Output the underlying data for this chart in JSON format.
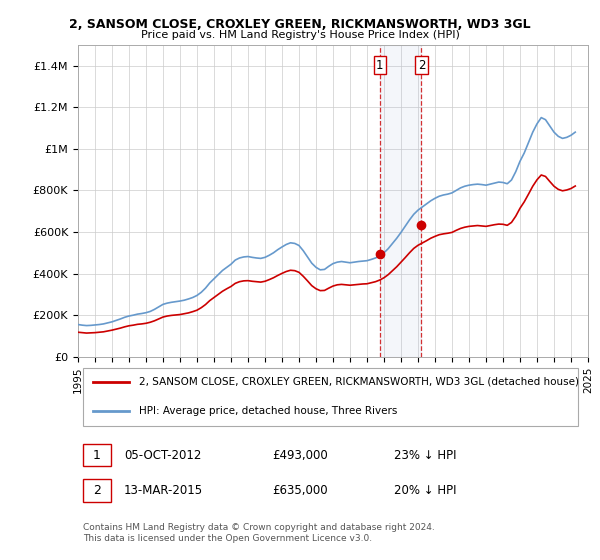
{
  "title": "2, SANSOM CLOSE, CROXLEY GREEN, RICKMANSWORTH, WD3 3GL",
  "subtitle": "Price paid vs. HM Land Registry's House Price Index (HPI)",
  "ylim": [
    0,
    1500000
  ],
  "yticks": [
    0,
    200000,
    400000,
    600000,
    800000,
    1000000,
    1200000,
    1400000
  ],
  "ytick_labels": [
    "£0",
    "£200K",
    "£400K",
    "£600K",
    "£800K",
    "£1M",
    "£1.2M",
    "£1.4M"
  ],
  "sale1_date": "05-OCT-2012",
  "sale1_price": 493000,
  "sale1_price_str": "£493,000",
  "sale1_pct": "23%",
  "sale1_year": 2012.75,
  "sale2_date": "13-MAR-2015",
  "sale2_price": 635000,
  "sale2_price_str": "£635,000",
  "sale2_pct": "20%",
  "sale2_year": 2015.2,
  "property_color": "#cc0000",
  "hpi_color": "#6699cc",
  "legend1_label": "2, SANSOM CLOSE, CROXLEY GREEN, RICKMANSWORTH, WD3 3GL (detached house)",
  "legend2_label": "HPI: Average price, detached house, Three Rivers",
  "copyright": "Contains HM Land Registry data © Crown copyright and database right 2024.\nThis data is licensed under the Open Government Licence v3.0.",
  "background_color": "#ffffff",
  "grid_color": "#cccccc",
  "hpi_data_x": [
    1995.0,
    1995.25,
    1995.5,
    1995.75,
    1996.0,
    1996.25,
    1996.5,
    1996.75,
    1997.0,
    1997.25,
    1997.5,
    1997.75,
    1998.0,
    1998.25,
    1998.5,
    1998.75,
    1999.0,
    1999.25,
    1999.5,
    1999.75,
    2000.0,
    2000.25,
    2000.5,
    2000.75,
    2001.0,
    2001.25,
    2001.5,
    2001.75,
    2002.0,
    2002.25,
    2002.5,
    2002.75,
    2003.0,
    2003.25,
    2003.5,
    2003.75,
    2004.0,
    2004.25,
    2004.5,
    2004.75,
    2005.0,
    2005.25,
    2005.5,
    2005.75,
    2006.0,
    2006.25,
    2006.5,
    2006.75,
    2007.0,
    2007.25,
    2007.5,
    2007.75,
    2008.0,
    2008.25,
    2008.5,
    2008.75,
    2009.0,
    2009.25,
    2009.5,
    2009.75,
    2010.0,
    2010.25,
    2010.5,
    2010.75,
    2011.0,
    2011.25,
    2011.5,
    2011.75,
    2012.0,
    2012.25,
    2012.5,
    2012.75,
    2013.0,
    2013.25,
    2013.5,
    2013.75,
    2014.0,
    2014.25,
    2014.5,
    2014.75,
    2015.0,
    2015.25,
    2015.5,
    2015.75,
    2016.0,
    2016.25,
    2016.5,
    2016.75,
    2017.0,
    2017.25,
    2017.5,
    2017.75,
    2018.0,
    2018.25,
    2018.5,
    2018.75,
    2019.0,
    2019.25,
    2019.5,
    2019.75,
    2020.0,
    2020.25,
    2020.5,
    2020.75,
    2021.0,
    2021.25,
    2021.5,
    2021.75,
    2022.0,
    2022.25,
    2022.5,
    2022.75,
    2023.0,
    2023.25,
    2023.5,
    2023.75,
    2024.0,
    2024.25
  ],
  "hpi_data_y": [
    155000,
    152000,
    150000,
    151000,
    153000,
    155000,
    158000,
    163000,
    168000,
    175000,
    182000,
    190000,
    196000,
    200000,
    205000,
    208000,
    212000,
    218000,
    228000,
    240000,
    252000,
    258000,
    262000,
    265000,
    268000,
    272000,
    278000,
    285000,
    295000,
    310000,
    330000,
    355000,
    375000,
    395000,
    415000,
    430000,
    445000,
    465000,
    475000,
    480000,
    482000,
    478000,
    475000,
    473000,
    478000,
    488000,
    500000,
    515000,
    528000,
    540000,
    548000,
    545000,
    535000,
    510000,
    480000,
    450000,
    430000,
    418000,
    420000,
    435000,
    448000,
    455000,
    458000,
    455000,
    452000,
    455000,
    458000,
    460000,
    462000,
    468000,
    475000,
    485000,
    500000,
    520000,
    545000,
    570000,
    598000,
    628000,
    658000,
    685000,
    705000,
    720000,
    735000,
    750000,
    762000,
    772000,
    778000,
    782000,
    788000,
    800000,
    812000,
    820000,
    825000,
    828000,
    830000,
    828000,
    825000,
    830000,
    835000,
    840000,
    838000,
    832000,
    850000,
    890000,
    940000,
    980000,
    1030000,
    1080000,
    1120000,
    1150000,
    1140000,
    1110000,
    1080000,
    1060000,
    1050000,
    1055000,
    1065000,
    1080000
  ],
  "prop_data_x": [
    1995.0,
    1995.25,
    1995.5,
    1995.75,
    1996.0,
    1996.25,
    1996.5,
    1996.75,
    1997.0,
    1997.25,
    1997.5,
    1997.75,
    1998.0,
    1998.25,
    1998.5,
    1998.75,
    1999.0,
    1999.25,
    1999.5,
    1999.75,
    2000.0,
    2000.25,
    2000.5,
    2000.75,
    2001.0,
    2001.25,
    2001.5,
    2001.75,
    2002.0,
    2002.25,
    2002.5,
    2002.75,
    2003.0,
    2003.25,
    2003.5,
    2003.75,
    2004.0,
    2004.25,
    2004.5,
    2004.75,
    2005.0,
    2005.25,
    2005.5,
    2005.75,
    2006.0,
    2006.25,
    2006.5,
    2006.75,
    2007.0,
    2007.25,
    2007.5,
    2007.75,
    2008.0,
    2008.25,
    2008.5,
    2008.75,
    2009.0,
    2009.25,
    2009.5,
    2009.75,
    2010.0,
    2010.25,
    2010.5,
    2010.75,
    2011.0,
    2011.25,
    2011.5,
    2011.75,
    2012.0,
    2012.25,
    2012.5,
    2012.75,
    2013.0,
    2013.25,
    2013.5,
    2013.75,
    2014.0,
    2014.25,
    2014.5,
    2014.75,
    2015.0,
    2015.25,
    2015.5,
    2015.75,
    2016.0,
    2016.25,
    2016.5,
    2016.75,
    2017.0,
    2017.25,
    2017.5,
    2017.75,
    2018.0,
    2018.25,
    2018.5,
    2018.75,
    2019.0,
    2019.25,
    2019.5,
    2019.75,
    2020.0,
    2020.25,
    2020.5,
    2020.75,
    2021.0,
    2021.25,
    2021.5,
    2021.75,
    2022.0,
    2022.25,
    2022.5,
    2022.75,
    2023.0,
    2023.25,
    2023.5,
    2023.75,
    2024.0,
    2024.25
  ],
  "prop_data_y": [
    118000,
    116000,
    114000,
    115000,
    116000,
    118000,
    120000,
    124000,
    128000,
    133000,
    138000,
    144000,
    149000,
    152000,
    156000,
    158000,
    161000,
    166000,
    173000,
    182000,
    191000,
    196000,
    199000,
    201000,
    203000,
    207000,
    211000,
    217000,
    224000,
    236000,
    251000,
    270000,
    285000,
    300000,
    315000,
    327000,
    338000,
    353000,
    361000,
    365000,
    366000,
    363000,
    361000,
    359000,
    363000,
    371000,
    380000,
    391000,
    401000,
    410000,
    416000,
    414000,
    406000,
    387000,
    365000,
    342000,
    327000,
    318000,
    319000,
    330000,
    340000,
    346000,
    348000,
    346000,
    344000,
    346000,
    348000,
    350000,
    351000,
    356000,
    361000,
    369000,
    380000,
    395000,
    414000,
    433000,
    455000,
    477000,
    500000,
    521000,
    536000,
    547000,
    558000,
    570000,
    579000,
    587000,
    591000,
    594000,
    598000,
    608000,
    617000,
    623000,
    627000,
    629000,
    631000,
    629000,
    627000,
    631000,
    635000,
    638000,
    637000,
    632000,
    646000,
    676000,
    714000,
    745000,
    782000,
    820000,
    851000,
    874000,
    867000,
    843000,
    820000,
    805000,
    798000,
    802000,
    809000,
    821000
  ]
}
